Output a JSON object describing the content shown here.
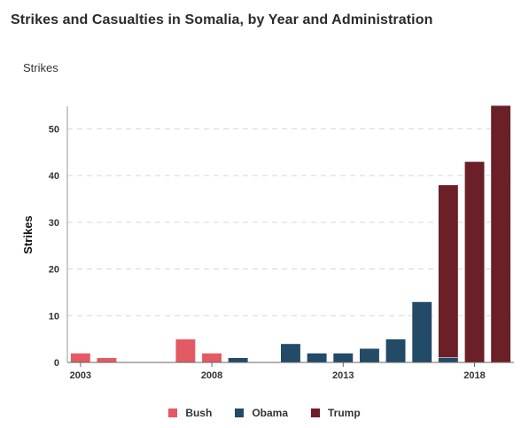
{
  "title": "Strikes and Casualties in Somalia, by Year and Administration",
  "metric_selector": {
    "selected": "Strikes"
  },
  "chart_data": {
    "type": "bar",
    "stacked": true,
    "ylabel": "Strikes",
    "xlabel": "",
    "ylim": [
      0,
      55
    ],
    "yticks": [
      0,
      10,
      20,
      30,
      40,
      50
    ],
    "grid": "horizontal dashed",
    "x_tick_labels": [
      "2003",
      "2008",
      "2013",
      "2018"
    ],
    "categories": [
      "2003",
      "2004",
      "2005",
      "2006",
      "2007",
      "2008",
      "2009",
      "2010",
      "2011",
      "2012",
      "2013",
      "2014",
      "2015",
      "2016",
      "2017",
      "2018",
      "2019"
    ],
    "series": [
      {
        "name": "Bush",
        "color": "#e45a62",
        "values": [
          2,
          1,
          0,
          0,
          5,
          2,
          0,
          0,
          0,
          0,
          0,
          0,
          0,
          0,
          0,
          0,
          0
        ]
      },
      {
        "name": "Obama",
        "color": "#234a66",
        "values": [
          0,
          0,
          0,
          0,
          0,
          0,
          1,
          0,
          4,
          2,
          2,
          3,
          5,
          13,
          1,
          0,
          0
        ]
      },
      {
        "name": "Trump",
        "color": "#6b1f27",
        "values": [
          0,
          0,
          0,
          0,
          0,
          0,
          0,
          0,
          0,
          0,
          0,
          0,
          0,
          0,
          37,
          43,
          55
        ]
      }
    ],
    "legend_position": "bottom"
  }
}
